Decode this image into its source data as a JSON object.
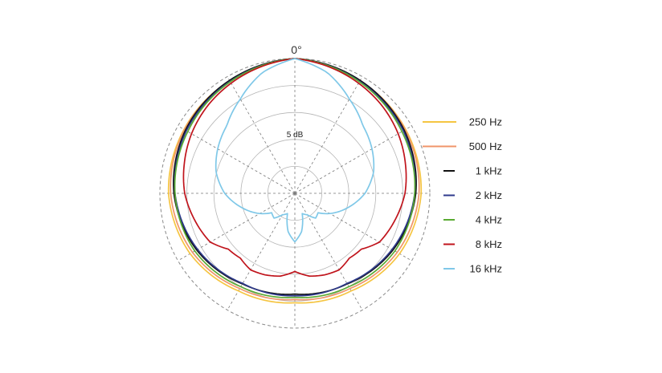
{
  "chart_data": {
    "type": "polar",
    "title": "",
    "radial_axis": {
      "step_label": "5 dB",
      "rings": 5,
      "grid": true
    },
    "angular_axis": {
      "zero_label": "0°",
      "spokes_every_deg": 30,
      "grid": true
    },
    "legend": {
      "placement": "right"
    },
    "series": [
      {
        "name": "250 Hz",
        "color": "#f5c542",
        "angles_deg": [
          0,
          30,
          60,
          90,
          120,
          150,
          180
        ],
        "r_db": [
          0,
          -0.9,
          -1.3,
          -1.6,
          -2.6,
          -4.1,
          -4.7
        ]
      },
      {
        "name": "500 Hz",
        "color": "#f0956a",
        "angles_deg": [
          0,
          30,
          60,
          90,
          120,
          150,
          180
        ],
        "r_db": [
          0,
          -0.9,
          -1.4,
          -2.0,
          -3.1,
          -4.6,
          -5.3
        ]
      },
      {
        "name": "1 kHz",
        "color": "#111111",
        "angles_deg": [
          0,
          30,
          60,
          90,
          120,
          150,
          180
        ],
        "r_db": [
          0,
          -0.8,
          -1.6,
          -2.6,
          -4.0,
          -5.6,
          -6.3
        ]
      },
      {
        "name": "2 kHz",
        "color": "#2e3a8c",
        "angles_deg": [
          0,
          30,
          60,
          90,
          120,
          150,
          180
        ],
        "r_db": [
          0,
          -1.0,
          -1.8,
          -2.8,
          -4.2,
          -5.7,
          -6.0
        ]
      },
      {
        "name": "4 kHz",
        "color": "#5aaa32",
        "angles_deg": [
          0,
          30,
          60,
          90,
          120,
          150,
          180
        ],
        "r_db": [
          0,
          -1.1,
          -2.1,
          -2.8,
          -3.6,
          -5.0,
          -5.7
        ]
      },
      {
        "name": "8 kHz",
        "color": "#c0141c",
        "angles_deg": [
          0,
          15,
          30,
          45,
          60,
          75,
          90,
          105,
          120,
          130,
          140,
          150,
          160,
          170,
          180
        ],
        "r_db": [
          0,
          -0.7,
          -1.4,
          -2.1,
          -2.9,
          -3.8,
          -4.6,
          -5.8,
          -6.9,
          -8.9,
          -9.3,
          -8.6,
          -8.9,
          -9.4,
          -10.5
        ]
      },
      {
        "name": "16 kHz",
        "color": "#7fc8e8",
        "angles_deg": [
          0,
          15,
          30,
          45,
          60,
          75,
          90,
          105,
          120,
          130,
          140,
          150,
          160,
          170,
          180
        ],
        "r_db": [
          0,
          -1.8,
          -4.8,
          -7.2,
          -8.5,
          -9.9,
          -12.0,
          -14.8,
          -17.5,
          -19.4,
          -19.0,
          -20.4,
          -21.0,
          -17.8,
          -16.0
        ]
      }
    ]
  }
}
